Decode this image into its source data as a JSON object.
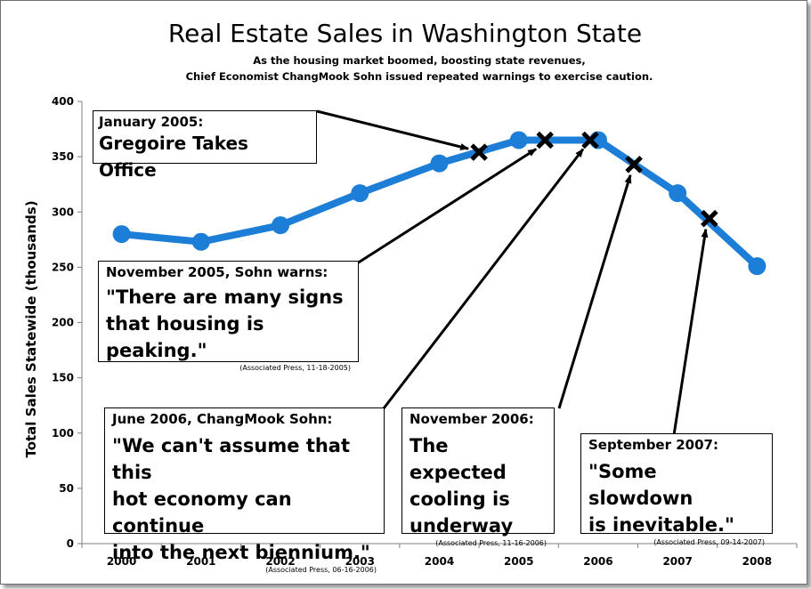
{
  "chart_data": {
    "type": "line",
    "title": "Real Estate Sales in Washington State",
    "subtitle_lines": [
      "As the housing market boomed, boosting state revenues,",
      "Chief Economist ChangMook Sohn issued repeated warnings to exercise caution."
    ],
    "ylabel": "Total Sales Statewide (thousands)",
    "xlabel": "",
    "categories": [
      "2000",
      "2001",
      "2002",
      "2003",
      "2004",
      "2005",
      "2006",
      "2007",
      "2008"
    ],
    "series": [
      {
        "values": [
          280,
          273,
          288,
          317,
          344,
          365,
          365,
          317,
          251
        ]
      }
    ],
    "ylim": [
      0,
      400
    ],
    "yticks": [
      0,
      50,
      100,
      150,
      200,
      250,
      300,
      350,
      400
    ],
    "grid": false,
    "line_color": "#1c7ed6",
    "marker_color": "#000000",
    "event_markers": [
      {
        "x": 2004.5,
        "y": 354
      },
      {
        "x": 2005.33,
        "y": 365
      },
      {
        "x": 2005.9,
        "y": 365
      },
      {
        "x": 2006.45,
        "y": 343
      },
      {
        "x": 2007.4,
        "y": 294
      }
    ],
    "annotations": [
      {
        "heading": "January 2005:",
        "quote": "Gregoire Takes Office",
        "source": ""
      },
      {
        "heading": "November 2005, Sohn warns:",
        "quote": "\"There are many signs\nthat housing is peaking.\"",
        "source": "(Associated Press, 11-18-2005)"
      },
      {
        "heading": "June 2006, ChangMook  Sohn:",
        "quote": "\"We can't assume that this\nhot economy can continue\ninto the next biennium.\"",
        "source": "(Associated Press, 06-16-2006)"
      },
      {
        "heading": "November 2006:",
        "quote": "The expected\ncooling is\nunderway",
        "source": "(Associated Press, 11-16-2006)"
      },
      {
        "heading": "September 2007:",
        "quote": "\"Some slowdown\nis inevitable.\"",
        "source": "(Associated Press, 09-14-2007)"
      }
    ]
  }
}
